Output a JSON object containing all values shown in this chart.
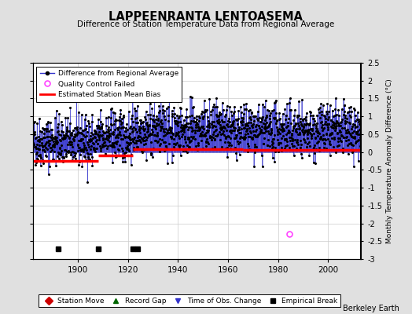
{
  "title": "LAPPEENRANTA LENTOASEMA",
  "subtitle": "Difference of Station Temperature Data from Regional Average",
  "ylabel_right": "Monthly Temperature Anomaly Difference (°C)",
  "ylim": [
    -3,
    2.5
  ],
  "yticks": [
    -3,
    -2.5,
    -2,
    -1.5,
    -1,
    -0.5,
    0,
    0.5,
    1,
    1.5,
    2,
    2.5
  ],
  "xlim": [
    1882,
    2013
  ],
  "xticks": [
    1900,
    1920,
    1940,
    1960,
    1980,
    2000
  ],
  "seed": 42,
  "bias_segments": [
    {
      "x_start": 1882,
      "x_end": 1908,
      "bias": -0.25
    },
    {
      "x_start": 1908,
      "x_end": 1922,
      "bias": -0.1
    },
    {
      "x_start": 1922,
      "x_end": 1966,
      "bias": 0.08
    },
    {
      "x_start": 1966,
      "x_end": 2013,
      "bias": 0.05
    }
  ],
  "empirical_breaks": [
    1892,
    1908,
    1922,
    1924
  ],
  "qc_failed_year": 1984.5,
  "qc_failed_value": -2.3,
  "background_color": "#e0e0e0",
  "plot_bg_color": "#ffffff",
  "line_color": "#3333cc",
  "dot_color": "#000000",
  "bias_color": "#ff0000",
  "qc_color": "#ff44ff",
  "empirical_color": "#000000",
  "grid_color": "#cccccc",
  "watermark": "Berkeley Earth",
  "noise_std": 0.35,
  "seasonal_amp": 0.55
}
